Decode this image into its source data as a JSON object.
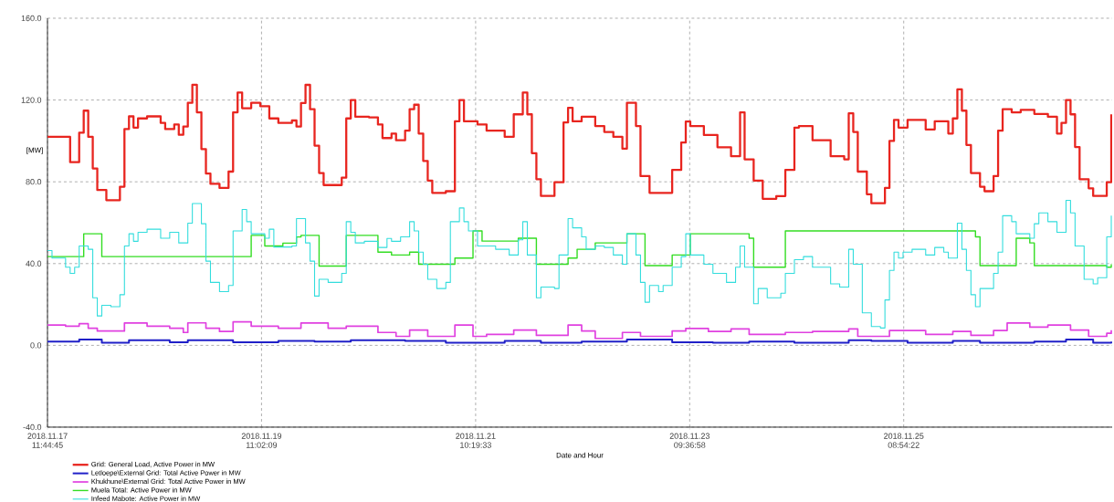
{
  "chart_data": {
    "type": "step",
    "xlabel": "Date and Hour",
    "ylabel": "[MW]",
    "xlim": [
      "2018-11-17T11:45",
      "2018-11-27T06:57"
    ],
    "ylim": [
      -40,
      160
    ],
    "xticks": [
      {
        "value": "2018-11-17T11:45",
        "label": "2018.11.17 11:44:45"
      },
      {
        "value": "2018-11-19T11:02",
        "label": "2018.11.19 11:02:09"
      },
      {
        "value": "2018-11-21T10:20",
        "label": "2018.11.21 10:19:33"
      },
      {
        "value": "2018-11-23T09:37",
        "label": "2018.11.23 09:36:58"
      },
      {
        "value": "2018-11-25T08:54",
        "label": "2018.11.25 08:54:22"
      }
    ],
    "yticks": [
      {
        "value": -40,
        "label": "-40.0"
      },
      {
        "value": 0,
        "label": "0.0"
      },
      {
        "value": 40,
        "label": "40.0"
      },
      {
        "value": 80,
        "label": "80.0"
      },
      {
        "value": 120,
        "label": "120.0"
      },
      {
        "value": 160,
        "label": "160.0"
      }
    ],
    "grid": true,
    "legend": "bottom left",
    "series": [
      {
        "name": "Grid: General Load, Active Power in MW",
        "color": "#e8251f",
        "x": [
          "2018-11-17T11:45",
          "2018-11-17T16:45",
          "2018-11-17T18:45",
          "2018-11-17T19:45",
          "2018-11-17T20:45",
          "2018-11-17T21:45",
          "2018-11-17T22:45",
          "2018-11-18T00:45",
          "2018-11-18T03:45",
          "2018-11-18T04:45",
          "2018-11-18T05:45",
          "2018-11-18T06:45",
          "2018-11-18T07:45",
          "2018-11-18T09:45",
          "2018-11-18T12:45",
          "2018-11-18T13:45",
          "2018-11-18T15:45",
          "2018-11-18T16:45",
          "2018-11-18T17:45",
          "2018-11-18T18:45",
          "2018-11-18T19:45",
          "2018-11-18T20:45",
          "2018-11-18T21:45",
          "2018-11-18T22:45",
          "2018-11-18T23:45",
          "2018-11-19T01:45",
          "2018-11-19T03:45",
          "2018-11-19T04:45",
          "2018-11-19T05:45",
          "2018-11-19T06:45",
          "2018-11-19T08:45",
          "2018-11-19T10:45",
          "2018-11-19T12:45",
          "2018-11-19T14:45",
          "2018-11-19T17:45",
          "2018-11-19T18:45",
          "2018-11-19T19:45",
          "2018-11-19T20:45",
          "2018-11-19T21:45",
          "2018-11-19T22:45",
          "2018-11-19T23:45",
          "2018-11-20T00:45",
          "2018-11-20T04:45",
          "2018-11-20T05:45",
          "2018-11-20T06:45",
          "2018-11-20T07:45",
          "2018-11-20T10:45",
          "2018-11-20T12:45",
          "2018-11-20T13:45",
          "2018-11-20T15:45",
          "2018-11-20T16:45",
          "2018-11-20T18:45",
          "2018-11-20T19:45",
          "2018-11-20T20:45",
          "2018-11-20T21:45",
          "2018-11-20T22:45",
          "2018-11-20T23:45",
          "2018-11-21T00:45",
          "2018-11-21T03:45",
          "2018-11-21T05:45",
          "2018-11-21T06:45",
          "2018-11-21T07:45",
          "2018-11-21T10:45",
          "2018-11-21T12:45",
          "2018-11-21T16:45",
          "2018-11-21T18:45",
          "2018-11-21T20:45",
          "2018-11-21T21:45",
          "2018-11-21T22:45",
          "2018-11-21T23:45",
          "2018-11-22T00:45",
          "2018-11-22T03:45",
          "2018-11-22T05:45",
          "2018-11-22T06:45",
          "2018-11-22T07:45",
          "2018-11-22T09:45",
          "2018-11-22T12:45",
          "2018-11-22T14:45",
          "2018-11-22T16:45",
          "2018-11-22T18:45",
          "2018-11-22T19:45",
          "2018-11-22T21:45",
          "2018-11-22T22:45",
          "2018-11-23T00:45",
          "2018-11-23T03:45",
          "2018-11-23T05:45",
          "2018-11-23T07:45",
          "2018-11-23T08:45",
          "2018-11-23T09:45",
          "2018-11-23T12:45",
          "2018-11-23T15:45",
          "2018-11-23T18:45",
          "2018-11-23T20:45",
          "2018-11-23T21:45",
          "2018-11-23T23:45",
          "2018-11-24T01:45",
          "2018-11-24T04:45",
          "2018-11-24T06:45",
          "2018-11-24T08:45",
          "2018-11-24T09:45",
          "2018-11-24T12:45",
          "2018-11-24T16:45",
          "2018-11-24T19:45",
          "2018-11-24T20:45",
          "2018-11-24T21:45",
          "2018-11-24T22:45",
          "2018-11-25T00:45",
          "2018-11-25T01:45",
          "2018-11-25T04:45",
          "2018-11-25T05:45",
          "2018-11-25T06:45",
          "2018-11-25T07:45",
          "2018-11-25T09:45",
          "2018-11-25T13:45",
          "2018-11-25T15:45",
          "2018-11-25T18:45",
          "2018-11-25T19:45",
          "2018-11-25T20:45",
          "2018-11-25T21:45",
          "2018-11-25T22:45",
          "2018-11-25T23:45",
          "2018-11-26T01:45",
          "2018-11-26T02:45",
          "2018-11-26T04:45",
          "2018-11-26T05:45",
          "2018-11-26T06:45",
          "2018-11-26T08:45",
          "2018-11-26T10:45",
          "2018-11-26T13:45",
          "2018-11-26T16:45",
          "2018-11-26T18:45",
          "2018-11-26T19:45",
          "2018-11-26T20:45",
          "2018-11-26T21:45",
          "2018-11-26T22:45",
          "2018-11-26T23:45",
          "2018-11-27T01:45",
          "2018-11-27T02:45",
          "2018-11-27T05:45",
          "2018-11-27T06:45"
        ],
        "values": [
          102,
          89.6,
          104,
          114.8,
          102,
          86.5,
          76,
          71,
          77.6,
          105.8,
          112,
          106.5,
          111,
          112,
          108.8,
          105.8,
          108,
          103,
          107,
          118.6,
          127.5,
          114,
          96,
          84,
          79,
          77,
          85,
          114,
          123.7,
          116,
          118.6,
          117,
          111,
          108.8,
          110,
          107,
          118.5,
          127.4,
          115.5,
          97.7,
          84.3,
          78.4,
          82,
          111,
          120,
          111.8,
          111.5,
          108,
          101.4,
          103.6,
          100.3,
          105,
          115.5,
          117.7,
          103.6,
          90.2,
          80.6,
          74.6,
          75.4,
          109.6,
          120,
          109.6,
          108,
          105,
          102,
          113,
          123.7,
          113,
          94,
          81.3,
          73.1,
          79.8,
          109,
          116.2,
          109.6,
          111.8,
          107.3,
          104.4,
          102,
          96.2,
          118.6,
          107.3,
          82.8,
          74.6,
          74.6,
          85.8,
          99.2,
          109.5,
          107.3,
          102.9,
          96.9,
          92.5,
          114,
          91,
          80.6,
          71.7,
          73,
          85.8,
          106.5,
          107.3,
          100.3,
          92.5,
          91,
          113.5,
          104.4,
          85,
          73.9,
          69.5,
          77,
          100,
          110.3,
          106.5,
          110.3,
          105.6,
          109.6,
          103.6,
          111,
          125.2,
          114.8,
          98,
          84.3,
          77.6,
          75.4,
          82.8,
          105,
          115.5,
          114,
          115.2,
          113.2,
          111.8,
          103.6,
          108.8,
          120,
          113,
          97,
          81.3,
          76.8,
          73.1,
          79.8,
          113
        ]
      },
      {
        "name": "Letloepe\\External Grid: Total Active Power in MW",
        "color": "#2020c8",
        "x": [
          "2018-11-17T11:45",
          "2018-11-17T18:45",
          "2018-11-17T23:45",
          "2018-11-18T05:45",
          "2018-11-18T14:45",
          "2018-11-18T18:45",
          "2018-11-19T04:45",
          "2018-11-19T14:45",
          "2018-11-19T22:45",
          "2018-11-20T06:45",
          "2018-11-20T18:45",
          "2018-11-21T03:45",
          "2018-11-21T16:45",
          "2018-11-22T00:45",
          "2018-11-22T09:45",
          "2018-11-22T19:45",
          "2018-11-23T05:45",
          "2018-11-23T14:45",
          "2018-11-23T22:45",
          "2018-11-24T08:45",
          "2018-11-24T20:45",
          "2018-11-25T01:45",
          "2018-11-25T09:45",
          "2018-11-25T19:45",
          "2018-11-26T01:45",
          "2018-11-26T13:45",
          "2018-11-26T20:45",
          "2018-11-27T02:45",
          "2018-11-27T06:45"
        ],
        "values": [
          1.8,
          2.9,
          1.3,
          2.5,
          1.5,
          2.5,
          1.5,
          2.2,
          1.8,
          2.5,
          2.2,
          1.3,
          2.2,
          1.3,
          1.8,
          2.9,
          1.5,
          1.3,
          1.8,
          1.3,
          2.5,
          2.2,
          1.3,
          2.2,
          1.3,
          1.8,
          2.9,
          1.3,
          1.8
        ]
      },
      {
        "name": "Khukhune\\External Grid: Total Active Power in MW",
        "color": "#e040e0",
        "x": [
          "2018-11-17T11:45",
          "2018-11-17T15:45",
          "2018-11-17T18:45",
          "2018-11-17T20:45",
          "2018-11-17T22:45",
          "2018-11-18T04:45",
          "2018-11-18T09:45",
          "2018-11-18T14:45",
          "2018-11-18T17:45",
          "2018-11-18T18:45",
          "2018-11-18T22:45",
          "2018-11-19T01:45",
          "2018-11-19T04:45",
          "2018-11-19T08:45",
          "2018-11-19T14:45",
          "2018-11-19T19:45",
          "2018-11-20T01:45",
          "2018-11-20T05:45",
          "2018-11-20T12:45",
          "2018-11-20T16:45",
          "2018-11-20T19:45",
          "2018-11-20T23:45",
          "2018-11-21T05:45",
          "2018-11-21T09:45",
          "2018-11-21T12:45",
          "2018-11-21T18:45",
          "2018-11-21T23:45",
          "2018-11-22T06:45",
          "2018-11-22T09:45",
          "2018-11-22T12:45",
          "2018-11-22T18:45",
          "2018-11-22T22:45",
          "2018-11-23T05:45",
          "2018-11-23T08:45",
          "2018-11-23T13:45",
          "2018-11-23T18:45",
          "2018-11-23T22:45",
          "2018-11-24T06:45",
          "2018-11-24T12:45",
          "2018-11-24T20:45",
          "2018-11-24T22:45",
          "2018-11-25T01:45",
          "2018-11-25T05:45",
          "2018-11-25T13:45",
          "2018-11-25T19:45",
          "2018-11-25T23:45",
          "2018-11-26T04:45",
          "2018-11-26T07:45",
          "2018-11-26T12:45",
          "2018-11-26T16:45",
          "2018-11-26T21:45",
          "2018-11-27T01:45",
          "2018-11-27T05:45",
          "2018-11-27T06:45"
        ],
        "values": [
          9.9,
          9.4,
          10.6,
          8.4,
          7,
          10.9,
          9.4,
          8.4,
          6.3,
          11,
          8.4,
          6.8,
          11.5,
          9.4,
          8.4,
          10.9,
          8.4,
          9.4,
          6.3,
          4.4,
          7.5,
          4.4,
          9.9,
          4.4,
          5.4,
          7.5,
          4.9,
          9.9,
          7,
          3.4,
          6.3,
          4.4,
          7,
          8.3,
          6.8,
          8,
          5.4,
          6.3,
          6.8,
          8,
          4.4,
          4.4,
          7.3,
          5.4,
          6.8,
          4.9,
          7.3,
          10.9,
          8.9,
          9.9,
          7.5,
          4.4,
          5.9,
          7.4
        ]
      },
      {
        "name": "Muela Total: Active Power in MW",
        "color": "#33dd22",
        "x": [
          "2018-11-17T11:45",
          "2018-11-17T19:45",
          "2018-11-17T23:45",
          "2018-11-19T08:45",
          "2018-11-19T11:45",
          "2018-11-19T15:45",
          "2018-11-19T18:45",
          "2018-11-19T19:45",
          "2018-11-19T23:45",
          "2018-11-20T05:45",
          "2018-11-20T12:45",
          "2018-11-20T15:45",
          "2018-11-20T19:45",
          "2018-11-20T21:45",
          "2018-11-21T05:45",
          "2018-11-21T09:45",
          "2018-11-21T11:45",
          "2018-11-21T19:45",
          "2018-11-21T23:45",
          "2018-11-22T06:45",
          "2018-11-22T08:45",
          "2018-11-22T12:45",
          "2018-11-22T19:45",
          "2018-11-22T23:45",
          "2018-11-23T05:45",
          "2018-11-23T09:45",
          "2018-11-23T22:45",
          "2018-11-23T23:45",
          "2018-11-24T06:45",
          "2018-11-26T00:45",
          "2018-11-26T01:45",
          "2018-11-26T09:45",
          "2018-11-26T12:45",
          "2018-11-26T13:45",
          "2018-11-27T05:45",
          "2018-11-27T06:45"
        ],
        "values": [
          43.4,
          54.6,
          43.4,
          53.8,
          48.6,
          50,
          53,
          53.8,
          38.8,
          53.8,
          45.6,
          44.2,
          45.6,
          39.7,
          42.7,
          56,
          51,
          52.4,
          39.7,
          42.7,
          47,
          50.1,
          54.6,
          39,
          44.2,
          54.6,
          52.4,
          38.2,
          56,
          53.1,
          39,
          52.4,
          50.1,
          39,
          38.2,
          39.7
        ]
      },
      {
        "name": "Infeed Mabote: Active Power in MW",
        "color": "#33dddd",
        "x": [
          "2018-11-17T11:45",
          "2018-11-17T12:45",
          "2018-11-17T15:45",
          "2018-11-17T16:45",
          "2018-11-17T17:45",
          "2018-11-17T18:45",
          "2018-11-17T20:45",
          "2018-11-17T21:45",
          "2018-11-17T22:45",
          "2018-11-17T23:45",
          "2018-11-18T01:45",
          "2018-11-18T03:45",
          "2018-11-18T04:45",
          "2018-11-18T05:45",
          "2018-11-18T06:45",
          "2018-11-18T07:45",
          "2018-11-18T09:45",
          "2018-11-18T12:45",
          "2018-11-18T14:45",
          "2018-11-18T16:45",
          "2018-11-18T18:45",
          "2018-11-18T19:45",
          "2018-11-18T21:45",
          "2018-11-18T22:45",
          "2018-11-18T23:45",
          "2018-11-19T01:45",
          "2018-11-19T03:45",
          "2018-11-19T04:45",
          "2018-11-19T06:45",
          "2018-11-19T07:45",
          "2018-11-19T08:45",
          "2018-11-19T11:45",
          "2018-11-19T12:45",
          "2018-11-19T13:45",
          "2018-11-19T17:45",
          "2018-11-19T18:45",
          "2018-11-19T19:45",
          "2018-11-19T20:45",
          "2018-11-19T21:45",
          "2018-11-19T22:45",
          "2018-11-19T23:45",
          "2018-11-20T01:45",
          "2018-11-20T04:45",
          "2018-11-20T05:45",
          "2018-11-20T06:45",
          "2018-11-20T07:45",
          "2018-11-20T09:45",
          "2018-11-20T12:45",
          "2018-11-20T14:45",
          "2018-11-20T15:45",
          "2018-11-20T17:45",
          "2018-11-20T19:45",
          "2018-11-20T20:45",
          "2018-11-20T21:45",
          "2018-11-20T22:45",
          "2018-11-20T23:45",
          "2018-11-21T01:45",
          "2018-11-21T03:45",
          "2018-11-21T04:45",
          "2018-11-21T06:45",
          "2018-11-21T07:45",
          "2018-11-21T08:45",
          "2018-11-21T10:45",
          "2018-11-21T12:45",
          "2018-11-21T14:45",
          "2018-11-21T17:45",
          "2018-11-21T19:45",
          "2018-11-21T20:45",
          "2018-11-21T21:45",
          "2018-11-21T23:45",
          "2018-11-22T00:45",
          "2018-11-22T03:45",
          "2018-11-22T04:45",
          "2018-11-22T06:45",
          "2018-11-22T07:45",
          "2018-11-22T09:45",
          "2018-11-22T10:45",
          "2018-11-22T12:45",
          "2018-11-22T14:45",
          "2018-11-22T16:45",
          "2018-11-22T18:45",
          "2018-11-22T19:45",
          "2018-11-22T21:45",
          "2018-11-22T22:45",
          "2018-11-22T23:45",
          "2018-11-23T00:45",
          "2018-11-23T02:45",
          "2018-11-23T03:45",
          "2018-11-23T05:45",
          "2018-11-23T07:45",
          "2018-11-23T08:45",
          "2018-11-23T09:45",
          "2018-11-23T12:45",
          "2018-11-23T14:45",
          "2018-11-23T17:45",
          "2018-11-23T19:45",
          "2018-11-23T20:45",
          "2018-11-23T21:45",
          "2018-11-23T23:45",
          "2018-11-24T00:45",
          "2018-11-24T02:45",
          "2018-11-24T05:45",
          "2018-11-24T06:45",
          "2018-11-24T08:45",
          "2018-11-24T10:45",
          "2018-11-24T12:45",
          "2018-11-24T16:45",
          "2018-11-24T18:45",
          "2018-11-24T20:45",
          "2018-11-24T21:45",
          "2018-11-24T23:45",
          "2018-11-25T01:45",
          "2018-11-25T03:45",
          "2018-11-25T04:45",
          "2018-11-25T05:45",
          "2018-11-25T06:45",
          "2018-11-25T07:45",
          "2018-11-25T08:45",
          "2018-11-25T10:45",
          "2018-11-25T13:45",
          "2018-11-25T15:45",
          "2018-11-25T17:45",
          "2018-11-25T18:45",
          "2018-11-25T20:45",
          "2018-11-25T21:45",
          "2018-11-25T22:45",
          "2018-11-25T23:45",
          "2018-11-26T00:45",
          "2018-11-26T01:45",
          "2018-11-26T04:45",
          "2018-11-26T05:45",
          "2018-11-26T06:45",
          "2018-11-26T08:45",
          "2018-11-26T09:45",
          "2018-11-26T12:45",
          "2018-11-26T13:45",
          "2018-11-26T14:45",
          "2018-11-26T16:45",
          "2018-11-26T18:45",
          "2018-11-26T20:45",
          "2018-11-26T21:45",
          "2018-11-26T22:45",
          "2018-11-27T00:45",
          "2018-11-27T02:45",
          "2018-11-27T03:45",
          "2018-11-27T05:45",
          "2018-11-27T06:45"
        ],
        "values": [
          46.4,
          42.7,
          38.2,
          35.2,
          38.2,
          48.6,
          47,
          23.3,
          14.4,
          19.6,
          18.9,
          24.8,
          48.6,
          54.6,
          50.9,
          55.3,
          56.8,
          52.4,
          55.3,
          50.1,
          59.8,
          69.4,
          59.5,
          41.2,
          30.8,
          26.3,
          29.3,
          56,
          66.5,
          60.5,
          54.6,
          52.4,
          56.8,
          48.1,
          48.6,
          62,
          62,
          50.1,
          41.2,
          24.1,
          32.3,
          30.8,
          35.2,
          60.5,
          55.3,
          50.1,
          50.9,
          47.9,
          52.3,
          50.9,
          53.1,
          60.5,
          56,
          45.6,
          39.7,
          32.3,
          27.8,
          30.8,
          60.5,
          67.2,
          60.5,
          56,
          48.6,
          48.6,
          47,
          44.2,
          51.6,
          60.5,
          44.2,
          23.3,
          28.5,
          27.8,
          44.2,
          62,
          57.5,
          53.1,
          47,
          48.6,
          47.9,
          44.2,
          39.7,
          54.6,
          44.2,
          30.8,
          21.1,
          29.3,
          26.3,
          29.3,
          38.2,
          43.4,
          54.6,
          44.2,
          39.7,
          35.2,
          30.8,
          38.2,
          48.6,
          38.2,
          20.4,
          27.8,
          23.3,
          25.5,
          35.2,
          41.9,
          43.4,
          38.2,
          30.1,
          28.5,
          47,
          39.7,
          15.9,
          9.2,
          8.5,
          22.2,
          36.7,
          45.6,
          42.7,
          45.6,
          47,
          44.2,
          47.9,
          45.6,
          42.7,
          59.8,
          47,
          36.7,
          24.8,
          18.9,
          27.8,
          35.2,
          45.6,
          63.4,
          60.5,
          54.6,
          52.4,
          59.5,
          64.8,
          60.5,
          55.3,
          70.9,
          64.8,
          48.6,
          32.3,
          30.1,
          33.1,
          53.1,
          63.4
        ]
      }
    ]
  }
}
